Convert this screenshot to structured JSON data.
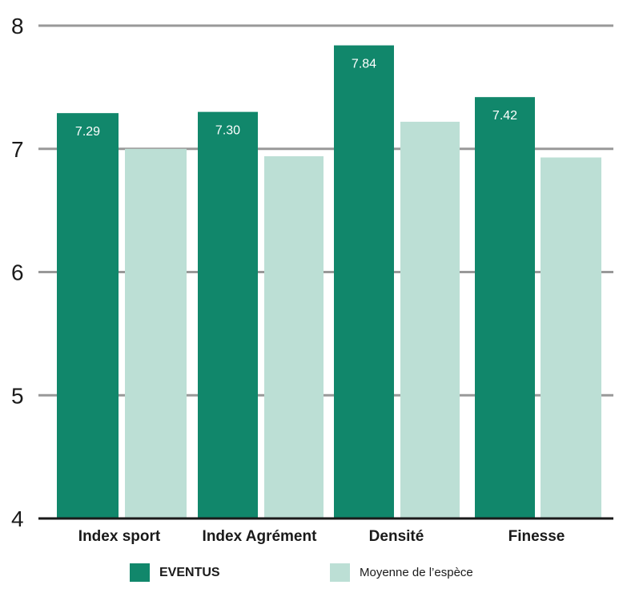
{
  "chart_data": {
    "type": "bar",
    "categories": [
      "Index sport",
      "Index Agrément",
      "Densité",
      "Finesse"
    ],
    "series": [
      {
        "name": "EVENTUS",
        "values": [
          7.29,
          7.3,
          7.84,
          7.42
        ],
        "data_labels": [
          "7.29",
          "7.30",
          "7.84",
          "7.42"
        ],
        "color": "#11876b"
      },
      {
        "name": "Moyenne de l’espèce",
        "values": [
          7.0,
          6.94,
          7.22,
          6.93
        ],
        "color": "#bcdfd5"
      }
    ],
    "yticks": [
      "4",
      "5",
      "6",
      "7",
      "8"
    ],
    "ylim": [
      4,
      8
    ],
    "grid": true,
    "gridline_color": "#999999",
    "legend_position": "bottom"
  }
}
